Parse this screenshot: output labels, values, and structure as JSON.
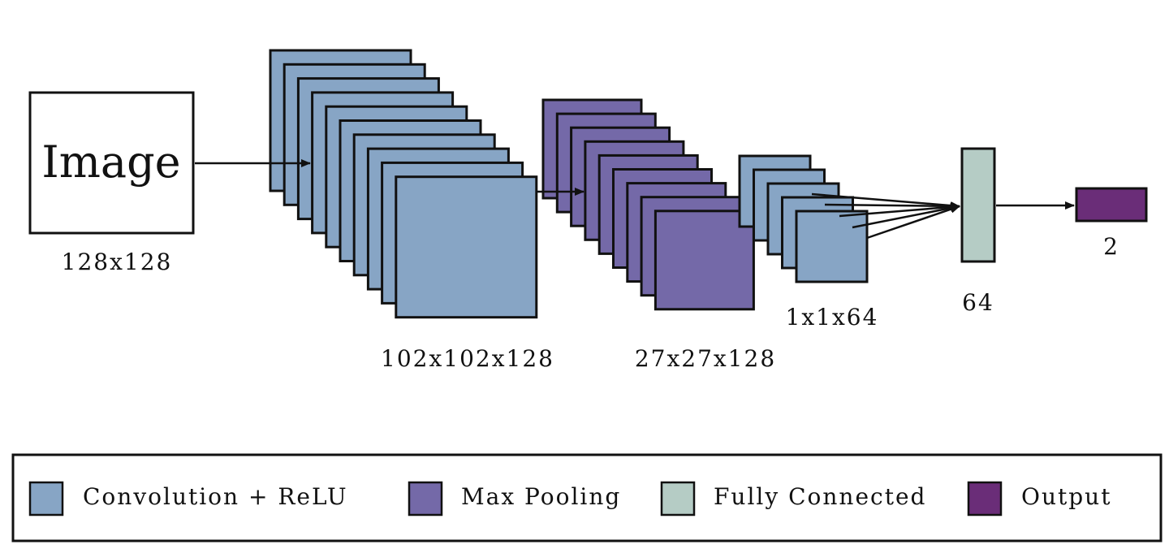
{
  "input": {
    "label": "Image",
    "size_label": "128x128"
  },
  "layers": [
    {
      "id": "conv1",
      "type": "conv",
      "size_label": "102x102x128"
    },
    {
      "id": "pool1",
      "type": "pool",
      "size_label": "27x27x128"
    },
    {
      "id": "conv2",
      "type": "conv",
      "size_label": "1x1x64"
    },
    {
      "id": "fc",
      "type": "fc",
      "size_label": "64"
    },
    {
      "id": "out",
      "type": "output",
      "size_label": "2"
    }
  ],
  "legend": [
    {
      "type": "conv",
      "label": "Convolution + ReLU"
    },
    {
      "type": "pool",
      "label": "Max Pooling"
    },
    {
      "type": "fc",
      "label": "Fully Connected"
    },
    {
      "type": "output",
      "label": "Output"
    }
  ],
  "colors": {
    "conv": "#87A5C5",
    "pool": "#7469A8",
    "fc": "#B5CCC5",
    "output": "#6A2D78",
    "stroke": "#111111",
    "input_fill": "#ffffff"
  }
}
